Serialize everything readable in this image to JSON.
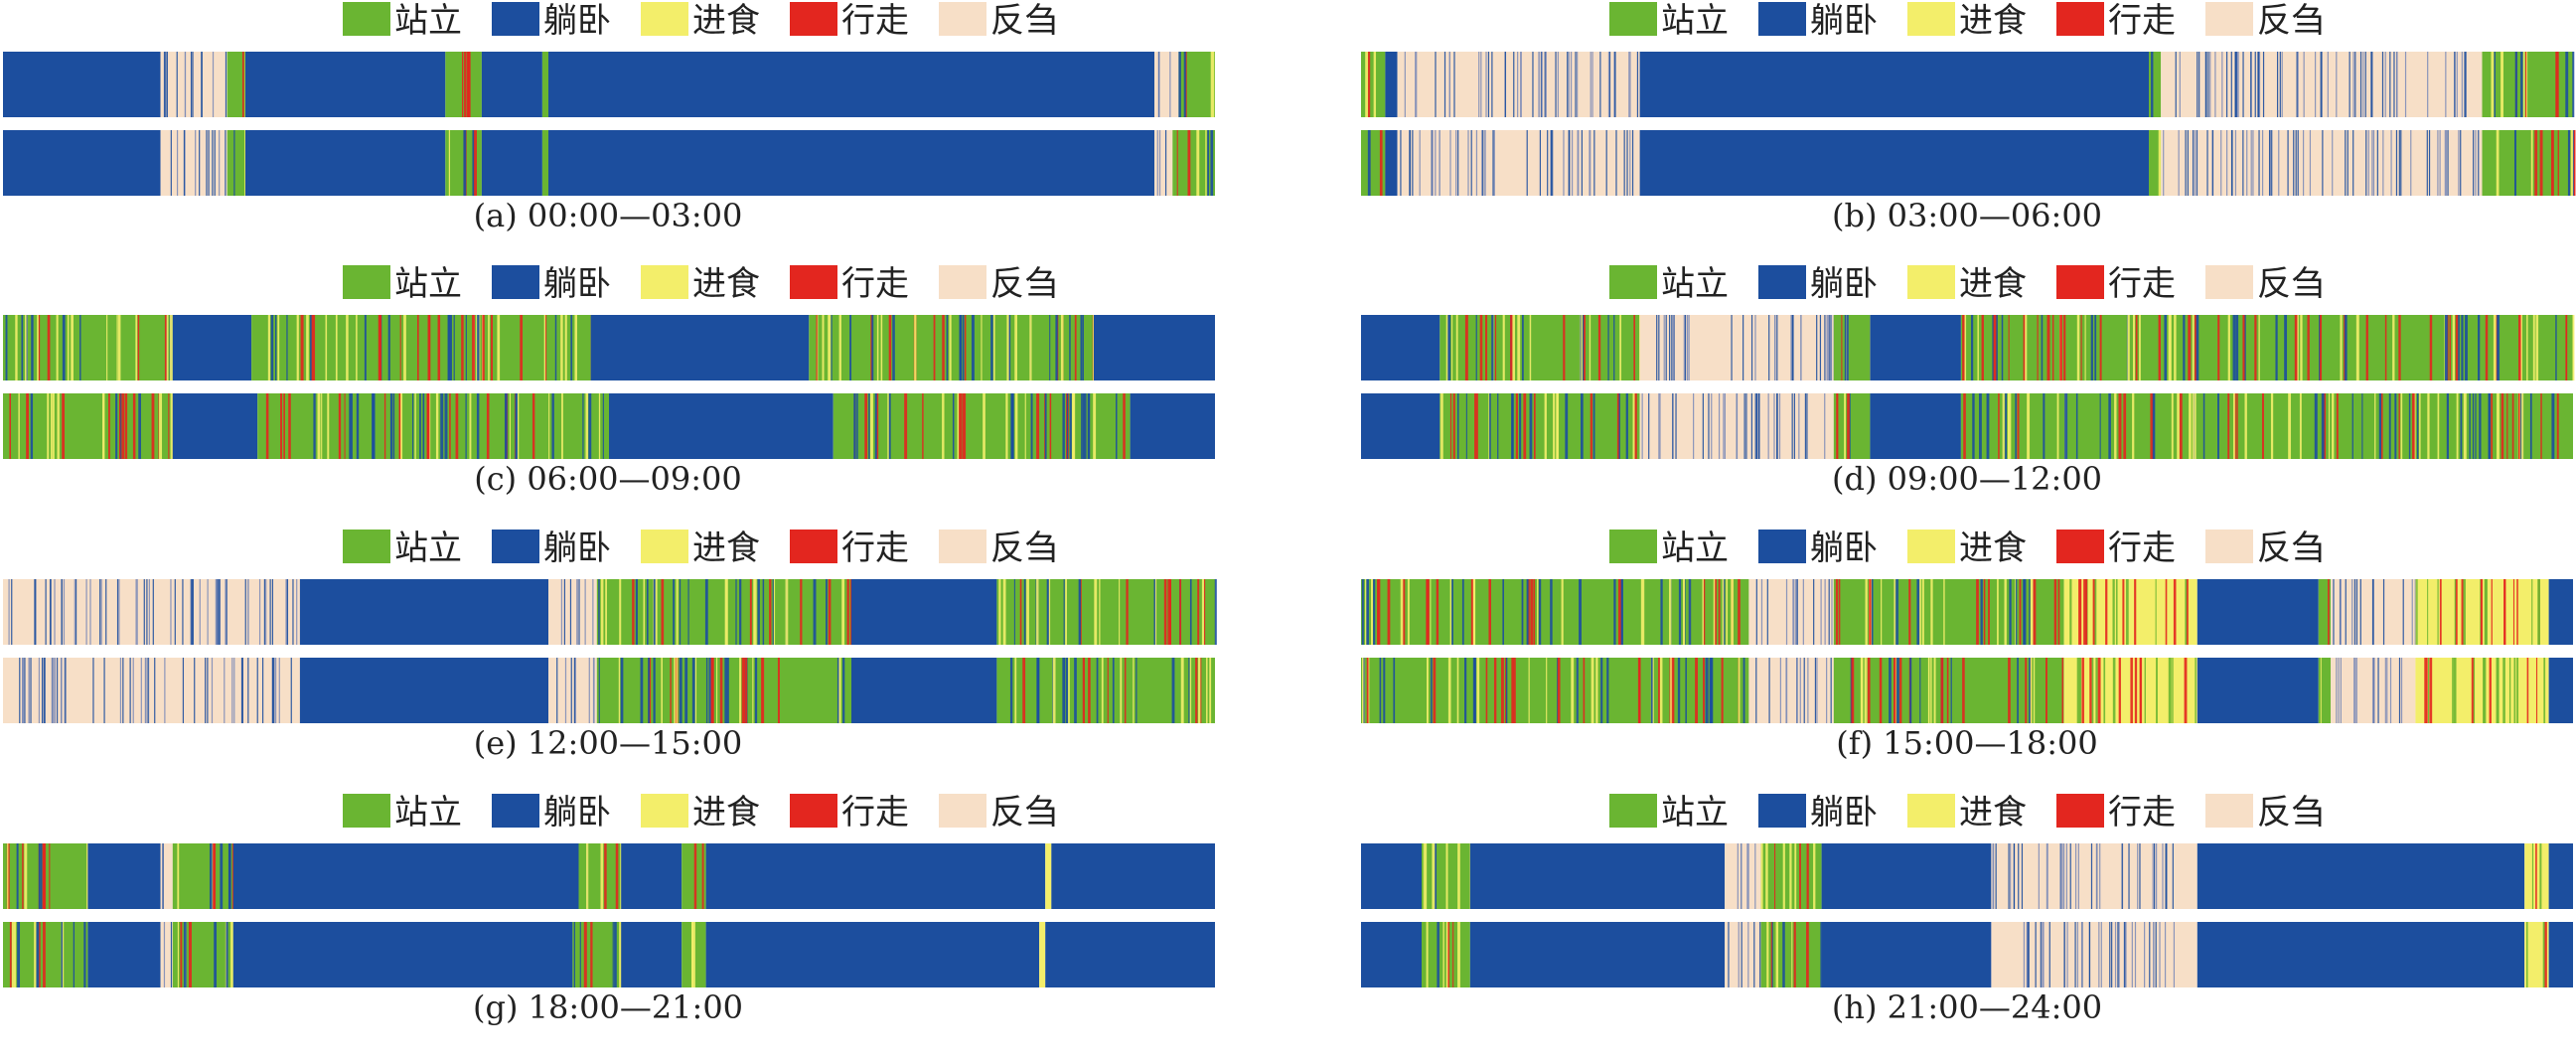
{
  "figure": {
    "legend": [
      {
        "key": "stand",
        "label": "站立",
        "color": "#6AB532"
      },
      {
        "key": "lie",
        "label": "躺卧",
        "color": "#1C4E9E"
      },
      {
        "key": "eat",
        "label": "进食",
        "color": "#F3EE6A"
      },
      {
        "key": "walk",
        "label": "行走",
        "color": "#E3261F"
      },
      {
        "key": "rumin",
        "label": "反刍",
        "color": "#F7DFC7"
      }
    ]
  },
  "chart_data": [
    {
      "type": "timeline",
      "caption": "(a) 00:00—03:00",
      "rows": [
        [
          [
            "lie",
            0,
            13
          ],
          [
            "rumin",
            13,
            18.5
          ],
          [
            "stand",
            18.5,
            20
          ],
          [
            "lie",
            20,
            36.5
          ],
          [
            "stand",
            36.5,
            39.5
          ],
          [
            "lie",
            39.5,
            44.5
          ],
          [
            "stand",
            44.5,
            45
          ],
          [
            "lie",
            45,
            95
          ],
          [
            "rumin",
            95,
            97
          ],
          [
            "stand",
            97,
            100
          ]
        ],
        [
          [
            "lie",
            0,
            13
          ],
          [
            "rumin",
            13,
            18.5
          ],
          [
            "stand",
            18.5,
            20
          ],
          [
            "lie",
            20,
            36.5
          ],
          [
            "stand",
            36.5,
            39.5
          ],
          [
            "lie",
            39.5,
            44.5
          ],
          [
            "stand",
            44.5,
            45
          ],
          [
            "lie",
            45,
            95
          ],
          [
            "rumin",
            95,
            96.5
          ],
          [
            "stand",
            96.5,
            100
          ]
        ]
      ]
    },
    {
      "type": "timeline",
      "caption": "(b) 03:00—06:00",
      "rows": [
        [
          [
            "stand",
            0,
            2
          ],
          [
            "lie",
            2,
            3
          ],
          [
            "rumin",
            3,
            23
          ],
          [
            "lie",
            23,
            65
          ],
          [
            "stand",
            65,
            66
          ],
          [
            "rumin",
            66,
            92.5
          ],
          [
            "stand",
            92.5,
            100
          ]
        ],
        [
          [
            "stand",
            0,
            2
          ],
          [
            "lie",
            2,
            3
          ],
          [
            "rumin",
            3,
            23
          ],
          [
            "lie",
            23,
            65
          ],
          [
            "stand",
            65,
            66
          ],
          [
            "rumin",
            66,
            92.5
          ],
          [
            "stand",
            92.5,
            100
          ]
        ]
      ]
    },
    {
      "type": "timeline",
      "caption": "(c) 06:00—09:00",
      "rows": [
        [
          [
            "stand",
            0,
            14
          ],
          [
            "lie",
            14,
            20.5
          ],
          [
            "stand",
            20.5,
            48.5
          ],
          [
            "lie",
            48.5,
            66.5
          ],
          [
            "stand",
            66.5,
            90
          ],
          [
            "lie",
            90,
            100
          ]
        ],
        [
          [
            "stand",
            0,
            14
          ],
          [
            "lie",
            14,
            21
          ],
          [
            "stand",
            21,
            50
          ],
          [
            "lie",
            50,
            68.5
          ],
          [
            "stand",
            68.5,
            93
          ],
          [
            "lie",
            93,
            100
          ]
        ]
      ]
    },
    {
      "type": "timeline",
      "caption": "(d) 09:00—12:00",
      "rows": [
        [
          [
            "lie",
            0,
            6.5
          ],
          [
            "stand",
            6.5,
            23
          ],
          [
            "rumin",
            23,
            39
          ],
          [
            "stand",
            39,
            42
          ],
          [
            "lie",
            42,
            49.5
          ],
          [
            "stand",
            49.5,
            100
          ]
        ],
        [
          [
            "lie",
            0,
            6.5
          ],
          [
            "stand",
            6.5,
            23
          ],
          [
            "rumin",
            23,
            39
          ],
          [
            "stand",
            39,
            42
          ],
          [
            "lie",
            42,
            49.5
          ],
          [
            "stand",
            49.5,
            100
          ]
        ]
      ]
    },
    {
      "type": "timeline",
      "caption": "(e) 12:00—15:00",
      "rows": [
        [
          [
            "rumin",
            0,
            24.5
          ],
          [
            "lie",
            24.5,
            45
          ],
          [
            "rumin",
            45,
            49
          ],
          [
            "stand",
            49,
            70
          ],
          [
            "lie",
            70,
            82
          ],
          [
            "stand",
            82,
            100
          ]
        ],
        [
          [
            "rumin",
            0,
            24.5
          ],
          [
            "lie",
            24.5,
            45
          ],
          [
            "rumin",
            45,
            49
          ],
          [
            "stand",
            49,
            70
          ],
          [
            "lie",
            70,
            82
          ],
          [
            "stand",
            82,
            100
          ]
        ]
      ]
    },
    {
      "type": "timeline",
      "caption": "(f) 15:00—18:00",
      "rows": [
        [
          [
            "stand",
            0,
            32
          ],
          [
            "rumin",
            32,
            39
          ],
          [
            "stand",
            39,
            58
          ],
          [
            "eat",
            58,
            69
          ],
          [
            "lie",
            69,
            79
          ],
          [
            "stand",
            79,
            80
          ],
          [
            "rumin",
            80,
            87
          ],
          [
            "eat",
            87,
            98
          ],
          [
            "lie",
            98,
            100
          ]
        ],
        [
          [
            "stand",
            0,
            32
          ],
          [
            "rumin",
            32,
            39
          ],
          [
            "stand",
            39,
            58
          ],
          [
            "eat",
            58,
            69
          ],
          [
            "lie",
            69,
            79
          ],
          [
            "stand",
            79,
            80
          ],
          [
            "rumin",
            80,
            87
          ],
          [
            "eat",
            87,
            98
          ],
          [
            "lie",
            98,
            100
          ]
        ]
      ]
    },
    {
      "type": "timeline",
      "caption": "(g) 18:00—21:00",
      "rows": [
        [
          [
            "stand",
            0,
            7
          ],
          [
            "lie",
            7,
            13
          ],
          [
            "rumin",
            13,
            14
          ],
          [
            "stand",
            14,
            19
          ],
          [
            "lie",
            19,
            47.5
          ],
          [
            "stand",
            47.5,
            51
          ],
          [
            "lie",
            51,
            56
          ],
          [
            "stand",
            56,
            58
          ],
          [
            "lie",
            58,
            86
          ],
          [
            "eat",
            86,
            86.5
          ],
          [
            "lie",
            86.5,
            100
          ]
        ],
        [
          [
            "stand",
            0,
            7
          ],
          [
            "lie",
            7,
            13
          ],
          [
            "rumin",
            13,
            14
          ],
          [
            "stand",
            14,
            19
          ],
          [
            "lie",
            19,
            47
          ],
          [
            "stand",
            47,
            51
          ],
          [
            "lie",
            51,
            56
          ],
          [
            "stand",
            56,
            58
          ],
          [
            "lie",
            58,
            85.5
          ],
          [
            "eat",
            85.5,
            86
          ],
          [
            "lie",
            86,
            100
          ]
        ]
      ]
    },
    {
      "type": "timeline",
      "caption": "(h) 21:00—24:00",
      "rows": [
        [
          [
            "lie",
            0,
            5
          ],
          [
            "stand",
            5,
            9
          ],
          [
            "lie",
            9,
            30
          ],
          [
            "rumin",
            30,
            33
          ],
          [
            "stand",
            33,
            38
          ],
          [
            "lie",
            38,
            52
          ],
          [
            "rumin",
            52,
            69
          ],
          [
            "lie",
            69,
            96
          ],
          [
            "eat",
            96,
            98
          ],
          [
            "lie",
            98,
            100
          ]
        ],
        [
          [
            "lie",
            0,
            5
          ],
          [
            "stand",
            5,
            9
          ],
          [
            "lie",
            9,
            30
          ],
          [
            "rumin",
            30,
            33
          ],
          [
            "stand",
            33,
            38
          ],
          [
            "lie",
            38,
            52
          ],
          [
            "rumin",
            52,
            69
          ],
          [
            "lie",
            69,
            96
          ],
          [
            "eat",
            96,
            98
          ],
          [
            "lie",
            98,
            100
          ]
        ]
      ]
    }
  ]
}
